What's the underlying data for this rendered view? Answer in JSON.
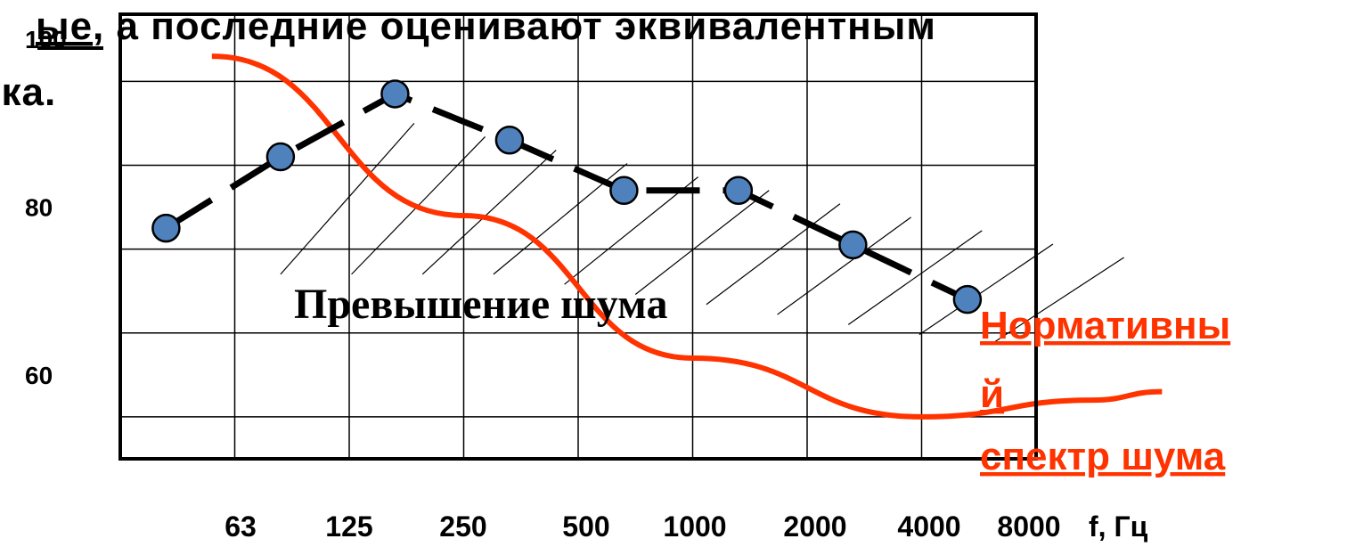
{
  "slide": {
    "line1_underlined": "ые",
    "line1_rest": ",  а  последние  оценивают  эквивалентным",
    "line2": "ука."
  },
  "chart_data": {
    "type": "line",
    "x": [
      "63",
      "125",
      "250",
      "500",
      "1000",
      "2000",
      "4000",
      "8000"
    ],
    "xlabel": "f, Гц",
    "ylabel": "",
    "y_ticks": [
      "100",
      "80",
      "60"
    ],
    "ylim": [
      50,
      103
    ],
    "series": [
      {
        "values": [
          77.5,
          86,
          93.5,
          88,
          82,
          82,
          75.5,
          69
        ],
        "color": "#4f81bd",
        "line_color": "#000000",
        "style": "dashed"
      },
      {
        "name_lines": [
          "Нормативны",
          "й",
          "спектр шума"
        ],
        "color": "#ff3300",
        "style": "solid",
        "curve": [
          [
            0.8,
            98
          ],
          [
            3,
            79
          ],
          [
            5,
            62
          ],
          [
            7,
            55
          ],
          [
            8.5,
            57
          ],
          [
            9.1,
            58
          ]
        ]
      }
    ],
    "annotation": "Превышение шума",
    "hatched_region": "Превышение шума",
    "grid": true
  }
}
